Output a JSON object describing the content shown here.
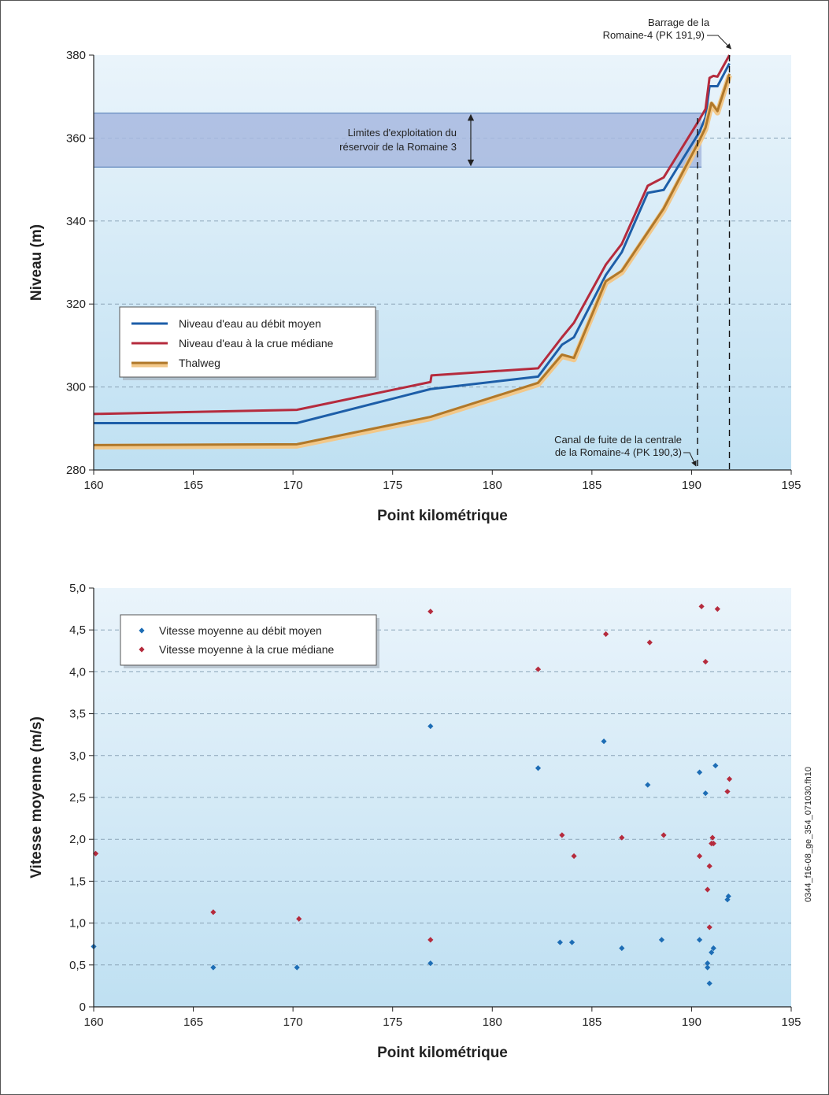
{
  "chart_data": [
    {
      "type": "line",
      "xlabel": "Point kilométrique",
      "ylabel": "Niveau (m)",
      "xlim": [
        160,
        195
      ],
      "ylim": [
        280,
        380
      ],
      "xticks": [
        "160",
        "165",
        "170",
        "175",
        "180",
        "185",
        "190",
        "195"
      ],
      "yticks": [
        "280",
        "300",
        "320",
        "340",
        "360",
        "380"
      ],
      "grid": "horizontal-dashed",
      "legend_position": "center-left",
      "band": {
        "ymin": 353,
        "ymax": 366,
        "xmin": 160,
        "xmax": 190.5,
        "label_lines": [
          "Limites d'exploitation du",
          "réservoir de la Romaine 3"
        ]
      },
      "vlines": [
        {
          "x": 190.3,
          "label_lines": [
            "Canal de fuite de la centrale",
            "de la Romaine-4 (PK 190,3)"
          ]
        },
        {
          "x": 191.9,
          "label_lines": [
            "Barrage de la",
            "Romaine-4 (PK 191,9)"
          ]
        }
      ],
      "series": [
        {
          "name": "Niveau d'eau au débit moyen",
          "color": "#1d5ea8",
          "x": [
            160,
            170.2,
            176.9,
            182.3,
            183.5,
            184.1,
            185.7,
            186.5,
            187.8,
            188.6,
            190.4,
            190.7,
            190.9,
            191.3,
            191.9
          ],
          "y": [
            291.3,
            291.3,
            299.5,
            302.5,
            310.2,
            312.0,
            327.0,
            332.5,
            346.8,
            347.5,
            361.5,
            365.0,
            372.5,
            372.5,
            378.0
          ]
        },
        {
          "name": "Niveau d'eau à la crue médiane",
          "color": "#b52b3d",
          "x": [
            160,
            170.2,
            176.9,
            176.95,
            182.3,
            183.5,
            184.1,
            185.7,
            186.5,
            187.8,
            188.6,
            190.4,
            190.7,
            190.9,
            191.1,
            191.3,
            191.9
          ],
          "y": [
            293.5,
            294.5,
            301.2,
            302.8,
            304.5,
            312.0,
            315.5,
            329.5,
            334.5,
            348.5,
            350.5,
            364.5,
            367.0,
            374.5,
            375.0,
            374.8,
            380.0
          ]
        },
        {
          "name": "Thalweg",
          "color": "#b0782a",
          "x": [
            160,
            170.2,
            176.9,
            182.3,
            183.5,
            184.1,
            185.7,
            186.5,
            188.6,
            190.4,
            190.7,
            191.0,
            191.3,
            191.9
          ],
          "y": [
            286.0,
            286.2,
            292.8,
            301.0,
            307.8,
            307.0,
            325.5,
            328.0,
            343.0,
            359.5,
            362.5,
            368.5,
            366.5,
            375.5
          ]
        }
      ]
    },
    {
      "type": "scatter",
      "xlabel": "Point kilométrique",
      "ylabel": "Vitesse moyenne (m/s)",
      "xlim": [
        160,
        195
      ],
      "ylim": [
        0,
        5
      ],
      "xticks": [
        "160",
        "165",
        "170",
        "175",
        "180",
        "185",
        "190",
        "195"
      ],
      "yticks": [
        "0",
        "0,5",
        "1,0",
        "1,5",
        "2,0",
        "2,5",
        "3,0",
        "3,5",
        "4,0",
        "4,5",
        "5,0"
      ],
      "grid": "horizontal-dashed",
      "legend_position": "top-left",
      "series": [
        {
          "name": "Vitesse moyenne au débit moyen",
          "color": "#1d6db5",
          "x": [
            160.0,
            166.0,
            170.2,
            176.9,
            176.9,
            182.3,
            183.4,
            184.0,
            185.6,
            186.5,
            187.8,
            188.5,
            190.4,
            190.4,
            190.7,
            190.8,
            190.8,
            190.9,
            191.0,
            191.1,
            191.2,
            191.8,
            191.85
          ],
          "y": [
            0.72,
            0.47,
            0.47,
            0.52,
            3.35,
            2.85,
            0.77,
            0.77,
            3.17,
            0.7,
            2.65,
            0.8,
            2.8,
            0.8,
            2.55,
            0.47,
            0.52,
            0.28,
            0.65,
            0.7,
            2.88,
            1.28,
            1.32
          ]
        },
        {
          "name": "Vitesse moyenne à la crue médiane",
          "color": "#b52b3d",
          "x": [
            160.1,
            166.0,
            170.3,
            176.9,
            176.9,
            182.3,
            183.5,
            184.1,
            185.7,
            186.5,
            187.9,
            188.6,
            190.4,
            190.5,
            190.7,
            190.8,
            190.9,
            190.9,
            191.0,
            191.05,
            191.1,
            191.3,
            191.8,
            191.9
          ],
          "y": [
            1.83,
            1.13,
            1.05,
            0.8,
            4.72,
            4.03,
            2.05,
            1.8,
            4.45,
            2.02,
            4.35,
            2.05,
            1.8,
            4.78,
            4.12,
            1.4,
            0.95,
            1.68,
            1.95,
            2.02,
            1.95,
            4.75,
            2.57,
            2.72
          ]
        }
      ]
    }
  ],
  "file_id": "0344_f16-08_ge_354_071030.fh10"
}
